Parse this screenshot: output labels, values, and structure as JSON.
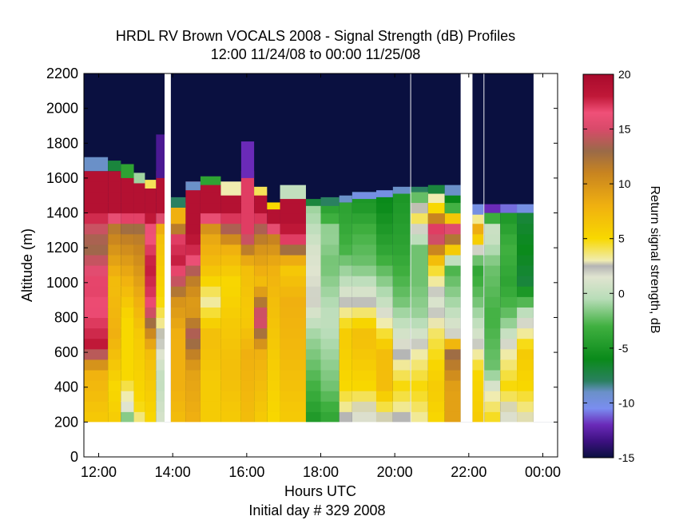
{
  "chart_data": {
    "type": "heatmap",
    "title": "HRDL RV Brown VOCALS 2008 - Signal Strength (dB) Profiles",
    "subtitle": "12:00 11/24/08 to 00:00 11/25/08",
    "xlabel": "Hours UTC",
    "xlabel2": "Initial day # 329  2008",
    "ylabel": "Altitude (m)",
    "xlim": [
      11.6,
      24.4
    ],
    "ylim": [
      0,
      2200
    ],
    "x_ticks": [
      12,
      14,
      16,
      18,
      20,
      22,
      24
    ],
    "x_tick_labels": [
      "12:00",
      "14:00",
      "16:00",
      "18:00",
      "20:00",
      "22:00",
      "00:00"
    ],
    "y_ticks": [
      0,
      200,
      400,
      600,
      800,
      1000,
      1200,
      1400,
      1600,
      1800,
      2000,
      2200
    ],
    "y_tick_labels": [
      "0",
      "200",
      "400",
      "600",
      "800",
      "1000",
      "1200",
      "1400",
      "1600",
      "1800",
      "2000",
      "2200"
    ],
    "colorbar": {
      "label": "Return signal strength, dB",
      "range": [
        -15,
        20
      ],
      "ticks": [
        -15,
        -10,
        -5,
        0,
        5,
        10,
        15,
        20
      ],
      "tick_labels": [
        "-15",
        "-10",
        "-5",
        "0",
        "5",
        "10",
        "15",
        "20"
      ],
      "colormap": [
        [
          -15,
          "#0a1040"
        ],
        [
          -13.5,
          "#3c1080"
        ],
        [
          -12,
          "#6a2ab8"
        ],
        [
          -10.5,
          "#7a8ef0"
        ],
        [
          -9,
          "#6a90c8"
        ],
        [
          -8,
          "#2a8060"
        ],
        [
          -6,
          "#0a8a1a"
        ],
        [
          -3,
          "#40b040"
        ],
        [
          -0.5,
          "#b8ddb8"
        ],
        [
          1.5,
          "#e0e4d0"
        ],
        [
          2.5,
          "#b4b4b4"
        ],
        [
          3,
          "#f0ecb0"
        ],
        [
          5,
          "#f8d800"
        ],
        [
          8,
          "#f0b010"
        ],
        [
          11,
          "#c88420"
        ],
        [
          13,
          "#9a6a48"
        ],
        [
          15,
          "#d84a6a"
        ],
        [
          16.5,
          "#f05078"
        ],
        [
          18,
          "#c01838"
        ],
        [
          20,
          "#a80a2c"
        ]
      ]
    },
    "no_data_color": "#ffffff",
    "background_color": "#0a1040",
    "gap_intervals_hours": [
      [
        13.78,
        13.95
      ],
      [
        20.42,
        20.44
      ],
      [
        21.78,
        22.1
      ],
      [
        22.4,
        22.42
      ],
      [
        23.75,
        24.4
      ]
    ],
    "data_altitude_range": [
      200,
      2200
    ],
    "range_gate_m": 60,
    "profiles": [
      {
        "t": [
          11.6,
          12.25
        ],
        "base": 1640,
        "top": 1720,
        "cap": -9,
        "profile": [
          [
            200,
            6
          ],
          [
            500,
            8
          ],
          [
            650,
            18
          ],
          [
            850,
            16.5
          ],
          [
            1000,
            17
          ],
          [
            1200,
            13
          ],
          [
            1300,
            14
          ],
          [
            1400,
            19
          ]
        ]
      },
      {
        "t": [
          12.25,
          12.6
        ],
        "base": 1640,
        "top": 1700,
        "cap": -7,
        "profile": [
          [
            200,
            6
          ],
          [
            400,
            5
          ],
          [
            700,
            8
          ],
          [
            1000,
            7
          ],
          [
            1200,
            10
          ],
          [
            1330,
            12
          ],
          [
            1400,
            19
          ]
        ]
      },
      {
        "t": [
          12.6,
          12.95
        ],
        "base": 1600,
        "top": 1680,
        "cap": -4,
        "profile": [
          [
            200,
            -3
          ],
          [
            300,
            2
          ],
          [
            450,
            5
          ],
          [
            800,
            5
          ],
          [
            1100,
            9
          ],
          [
            1300,
            12
          ],
          [
            1400,
            19
          ]
        ]
      },
      {
        "t": [
          12.95,
          13.25
        ],
        "base": 1570,
        "top": 1630,
        "cap": -1,
        "profile": [
          [
            200,
            3
          ],
          [
            300,
            5
          ],
          [
            700,
            6
          ],
          [
            1000,
            9
          ],
          [
            1300,
            12
          ],
          [
            1400,
            19
          ]
        ]
      },
      {
        "t": [
          13.25,
          13.55
        ],
        "base": 1540,
        "top": 1590,
        "cap": 4,
        "profile": [
          [
            200,
            5
          ],
          [
            600,
            7
          ],
          [
            900,
            17
          ],
          [
            1100,
            18
          ],
          [
            1300,
            16
          ],
          [
            1400,
            19
          ]
        ]
      },
      {
        "t": [
          13.55,
          13.78
        ],
        "base": 1600,
        "top": 1850,
        "cap": -13,
        "profile": [
          [
            200,
            1
          ],
          [
            450,
            0
          ],
          [
            700,
            2.5
          ],
          [
            900,
            5
          ],
          [
            1300,
            7
          ],
          [
            1400,
            19
          ]
        ]
      },
      {
        "t": [
          13.95,
          14.35
        ],
        "base": 1430,
        "top": 1490,
        "cap": -8,
        "profile": [
          [
            200,
            7
          ],
          [
            400,
            8
          ],
          [
            700,
            8
          ],
          [
            900,
            10
          ],
          [
            1100,
            18
          ],
          [
            1250,
            17
          ],
          [
            1350,
            8
          ]
        ]
      },
      {
        "t": [
          14.35,
          14.75
        ],
        "base": 1530,
        "top": 1580,
        "cap": -9,
        "profile": [
          [
            200,
            8
          ],
          [
            500,
            9
          ],
          [
            700,
            14
          ],
          [
            850,
            9
          ],
          [
            1000,
            11
          ],
          [
            1150,
            17
          ],
          [
            1300,
            19
          ],
          [
            1400,
            19
          ]
        ]
      },
      {
        "t": [
          14.75,
          15.3
        ],
        "base": 1560,
        "top": 1610,
        "cap": -4,
        "profile": [
          [
            200,
            6
          ],
          [
            450,
            6
          ],
          [
            700,
            7
          ],
          [
            900,
            3
          ],
          [
            1100,
            7
          ],
          [
            1300,
            9
          ],
          [
            1400,
            19
          ]
        ]
      },
      {
        "t": [
          15.3,
          15.85
        ],
        "base": 1500,
        "top": 1580,
        "cap": 3,
        "profile": [
          [
            200,
            6
          ],
          [
            500,
            7
          ],
          [
            800,
            6
          ],
          [
            1000,
            5
          ],
          [
            1200,
            8
          ],
          [
            1300,
            13
          ],
          [
            1400,
            19
          ]
        ]
      },
      {
        "t": [
          15.85,
          16.2
        ],
        "base": 1600,
        "top": 1810,
        "cap": -12,
        "profile": [
          [
            200,
            7
          ],
          [
            600,
            8
          ],
          [
            800,
            6
          ],
          [
            1100,
            7
          ],
          [
            1300,
            17
          ],
          [
            1500,
            17
          ]
        ]
      },
      {
        "t": [
          16.2,
          16.55
        ],
        "base": 1500,
        "top": 1550,
        "cap": 4,
        "profile": [
          [
            200,
            6
          ],
          [
            600,
            8
          ],
          [
            800,
            16
          ],
          [
            1000,
            7
          ],
          [
            1200,
            10
          ],
          [
            1300,
            13
          ],
          [
            1400,
            19
          ]
        ]
      },
      {
        "t": [
          16.55,
          16.9
        ],
        "base": 1420,
        "top": 1460,
        "cap": 5,
        "profile": [
          [
            200,
            5
          ],
          [
            600,
            6
          ],
          [
            900,
            7
          ],
          [
            1100,
            8
          ],
          [
            1250,
            11
          ],
          [
            1350,
            19
          ]
        ]
      },
      {
        "t": [
          16.9,
          17.6
        ],
        "base": 1480,
        "top": 1560,
        "cap": 0,
        "profile": [
          [
            200,
            6
          ],
          [
            500,
            7
          ],
          [
            900,
            8
          ],
          [
            1100,
            6
          ],
          [
            1250,
            17
          ],
          [
            1350,
            19
          ]
        ]
      },
      {
        "t": [
          17.6,
          18.0
        ],
        "base": 1440,
        "top": 1480,
        "cap": -7,
        "profile": [
          [
            200,
            -5
          ],
          [
            400,
            -3
          ],
          [
            700,
            -1
          ],
          [
            900,
            2
          ],
          [
            1200,
            1
          ],
          [
            1400,
            -1
          ]
        ]
      },
      {
        "t": [
          18.0,
          18.5
        ],
        "base": 1440,
        "top": 1490,
        "cap": -8,
        "profile": [
          [
            200,
            -4
          ],
          [
            400,
            -2
          ],
          [
            800,
            0
          ],
          [
            1100,
            -2
          ],
          [
            1300,
            -1
          ],
          [
            1400,
            -4
          ]
        ]
      },
      {
        "t": [
          18.5,
          18.85
        ],
        "base": 1460,
        "top": 1500,
        "cap": -9,
        "profile": [
          [
            200,
            2
          ],
          [
            400,
            5
          ],
          [
            700,
            6
          ],
          [
            1000,
            0
          ],
          [
            1200,
            -3
          ],
          [
            1400,
            -4
          ]
        ]
      },
      {
        "t": [
          18.85,
          19.5
        ],
        "base": 1480,
        "top": 1520,
        "cap": -10,
        "profile": [
          [
            200,
            1
          ],
          [
            400,
            5
          ],
          [
            700,
            7
          ],
          [
            900,
            2
          ],
          [
            1100,
            -2
          ],
          [
            1300,
            -3
          ],
          [
            1450,
            -5
          ]
        ]
      },
      {
        "t": [
          19.5,
          19.95
        ],
        "base": 1490,
        "top": 1530,
        "cap": -10,
        "profile": [
          [
            200,
            2
          ],
          [
            400,
            7
          ],
          [
            600,
            7
          ],
          [
            900,
            0
          ],
          [
            1200,
            -4
          ],
          [
            1450,
            -6
          ]
        ]
      },
      {
        "t": [
          19.95,
          20.42
        ],
        "base": 1510,
        "top": 1550,
        "cap": -9,
        "profile": [
          [
            200,
            2
          ],
          [
            400,
            5
          ],
          [
            700,
            1
          ],
          [
            900,
            -2
          ],
          [
            1200,
            -4
          ],
          [
            1500,
            -5
          ]
        ]
      },
      {
        "t": [
          20.44,
          20.9
        ],
        "base": 1520,
        "top": 1550,
        "cap": -8,
        "profile": [
          [
            200,
            3
          ],
          [
            400,
            5
          ],
          [
            600,
            3
          ],
          [
            800,
            -1
          ],
          [
            1000,
            -2
          ],
          [
            1200,
            -2
          ],
          [
            1400,
            5
          ],
          [
            1500,
            -3
          ]
        ]
      },
      {
        "t": [
          20.9,
          21.35
        ],
        "base": 1510,
        "top": 1560,
        "cap": -7,
        "profile": [
          [
            200,
            5
          ],
          [
            400,
            6
          ],
          [
            700,
            4
          ],
          [
            900,
            1
          ],
          [
            1100,
            5
          ],
          [
            1300,
            18
          ],
          [
            1450,
            3
          ]
        ]
      },
      {
        "t": [
          21.35,
          21.78
        ],
        "base": 1500,
        "top": 1560,
        "cap": -9,
        "profile": [
          [
            400,
            9
          ],
          [
            600,
            13
          ],
          [
            700,
            2
          ],
          [
            900,
            -1
          ],
          [
            1100,
            -3
          ],
          [
            1300,
            17
          ],
          [
            1450,
            -6
          ]
        ]
      },
      {
        "t": [
          22.1,
          22.4
        ],
        "base": 1390,
        "top": 1450,
        "cap": -10,
        "profile": [
          [
            200,
            6
          ],
          [
            500,
            5
          ],
          [
            700,
            1
          ],
          [
            900,
            -2
          ],
          [
            1100,
            -4
          ],
          [
            1300,
            9
          ],
          [
            1400,
            1
          ]
        ]
      },
      {
        "t": [
          22.42,
          22.85
        ],
        "base": 1400,
        "top": 1450,
        "cap": -12,
        "profile": [
          [
            200,
            5
          ],
          [
            350,
            3
          ],
          [
            500,
            -2
          ],
          [
            800,
            -3
          ],
          [
            1100,
            -2
          ],
          [
            1300,
            1
          ],
          [
            1400,
            -5
          ]
        ]
      },
      {
        "t": [
          22.85,
          23.3
        ],
        "base": 1400,
        "top": 1450,
        "cap": -11,
        "profile": [
          [
            200,
            1
          ],
          [
            400,
            5
          ],
          [
            600,
            3
          ],
          [
            800,
            -2
          ],
          [
            1000,
            -4
          ],
          [
            1200,
            -3
          ],
          [
            1400,
            -5
          ]
        ]
      },
      {
        "t": [
          23.3,
          23.75
        ],
        "base": 1400,
        "top": 1450,
        "cap": -10,
        "profile": [
          [
            200,
            2.5
          ],
          [
            400,
            5
          ],
          [
            600,
            6
          ],
          [
            800,
            1
          ],
          [
            1000,
            -7
          ],
          [
            1200,
            -6
          ],
          [
            1400,
            -7
          ]
        ]
      }
    ]
  }
}
